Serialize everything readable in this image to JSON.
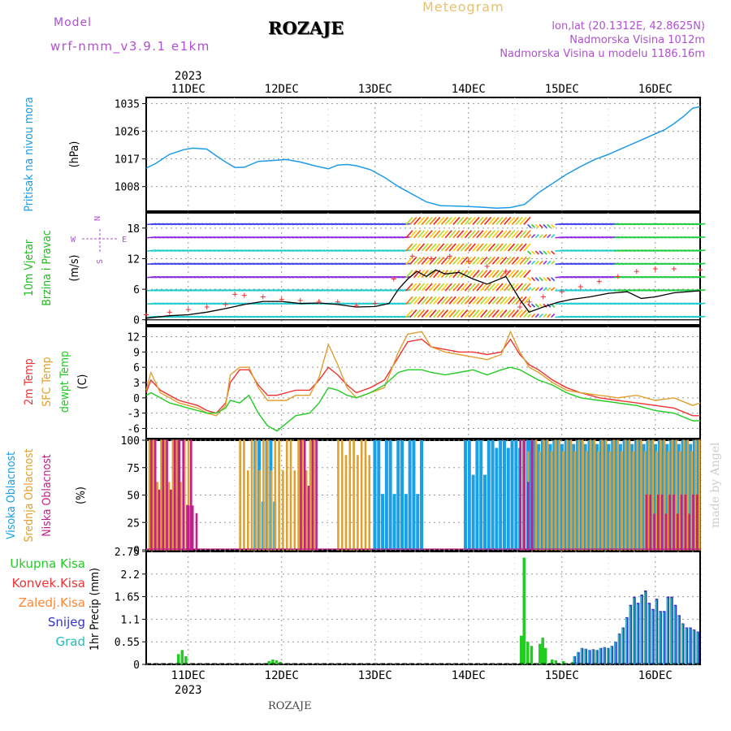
{
  "header": {
    "model_label": "Model",
    "model_name": "wrf-nmm_v3.9.1 e1km",
    "station": "ROZAJE",
    "meteogram": "Meteogram",
    "lonlat": "lon,lat (20.1312E, 42.8625N)",
    "alt": "Nadmorska Visina 1012m",
    "alt_model": "Nadmorska Visina u modelu 1186.16m",
    "year": "2023",
    "footer_station": "ROZAJE",
    "watermark": "made by Angel"
  },
  "colors": {
    "pressure": "#1e9be6",
    "wind_label": "#22bb22",
    "temp2m": "#ee3333",
    "sfc": "#e0a030",
    "dewpt": "#22cc22",
    "high_cloud": "#1aa0e6",
    "mid_cloud": "#e0a030",
    "low_cloud": "#c0208a",
    "meteogram": "#e8c070",
    "purple": "#b050d0",
    "total_precip": "#22cc22",
    "conv_precip": "#ee3333",
    "frozen_precip": "#ff8833",
    "snow": "#3333cc",
    "graupel": "#22bbbb"
  },
  "chart_data": [
    {
      "type": "line",
      "title": "",
      "ylabel_lines": [
        "Pritisak na nivou mora",
        "(hPa)"
      ],
      "ylim": [
        1000,
        1037
      ],
      "yticks": [
        1008,
        1017,
        1026,
        1035
      ],
      "x_ticks": [
        "11DEC",
        "12DEC",
        "13DEC",
        "14DEC",
        "15DEC",
        "16DEC"
      ],
      "x_range_days": [
        10.55,
        16.48
      ],
      "grid": true,
      "series": [
        {
          "x": [
            10.55,
            10.65,
            10.8,
            10.95,
            11.05,
            11.2,
            11.3,
            11.4,
            11.5,
            11.6,
            11.75,
            11.9,
            12.05,
            12.2,
            12.35,
            12.5,
            12.6,
            12.7,
            12.8,
            12.95,
            13.1,
            13.25,
            13.4,
            13.55,
            13.7,
            13.85,
            14.0,
            14.15,
            14.3,
            14.45,
            14.6,
            14.75,
            14.9,
            15.05,
            15.2,
            15.35,
            15.5,
            15.65,
            15.8,
            15.95,
            16.1,
            16.2,
            16.3,
            16.4,
            16.48
          ],
          "y": [
            1014,
            1015.5,
            1018.5,
            1020,
            1020.5,
            1020.2,
            1018,
            1016,
            1014.2,
            1014.3,
            1016.2,
            1016.5,
            1016.8,
            1016,
            1014.8,
            1013.8,
            1015,
            1015.2,
            1014.8,
            1013.5,
            1011,
            1008,
            1005.5,
            1003,
            1001.8,
            1001.7,
            1001.5,
            1001.3,
            1001,
            1001.2,
            1002.2,
            1006,
            1009,
            1012,
            1014.5,
            1016.8,
            1018.5,
            1020.5,
            1022.5,
            1024.5,
            1026.5,
            1028.5,
            1030.8,
            1033.5,
            1034
          ]
        }
      ]
    },
    {
      "type": "line",
      "title": "",
      "ylabel_lines": [
        "10m Vjetar",
        "Brzina i Pravac",
        "(m/s)"
      ],
      "ylim": [
        -1,
        21
      ],
      "yticks": [
        0,
        6,
        12,
        18
      ],
      "x_ticks": [
        "11DEC",
        "12DEC",
        "13DEC",
        "14DEC",
        "15DEC",
        "16DEC"
      ],
      "x_range_days": [
        10.55,
        16.48
      ],
      "grid": true,
      "compass_label": "N",
      "compass_e": "E",
      "compass_w": "W",
      "compass_s": "S",
      "series": [
        {
          "name": "",
          "x": [
            10.55,
            10.8,
            11.0,
            11.2,
            11.4,
            11.6,
            11.8,
            12.0,
            12.2,
            12.4,
            12.6,
            12.8,
            13.0,
            13.15,
            13.25,
            13.35,
            13.45,
            13.55,
            13.65,
            13.75,
            13.9,
            14.05,
            14.2,
            14.4,
            14.55,
            14.65,
            14.8,
            14.95,
            15.1,
            15.3,
            15.5,
            15.7,
            15.85,
            16.0,
            16.2,
            16.48
          ],
          "y": [
            0.3,
            0.8,
            1.0,
            1.5,
            2.2,
            3.0,
            3.6,
            3.6,
            3.2,
            3.3,
            3.0,
            2.5,
            2.6,
            3.2,
            6.0,
            8.0,
            9.5,
            8.5,
            9.8,
            9.0,
            9.3,
            8.0,
            7.0,
            8.5,
            4.0,
            1.5,
            2.5,
            3.4,
            4.0,
            4.5,
            5.2,
            5.5,
            4.2,
            4.5,
            5.3,
            5.7
          ]
        },
        {
          "name": "",
          "x": [
            10.55,
            10.8,
            11.0,
            11.2,
            11.4,
            11.5,
            11.6,
            11.8,
            12.0,
            12.2,
            12.4,
            12.6,
            12.8,
            13.0,
            13.2,
            13.4,
            13.6,
            13.8,
            14.0,
            14.2,
            14.4,
            14.55,
            14.65,
            14.8,
            15.0,
            15.2,
            15.4,
            15.6,
            15.8,
            16.0,
            16.2,
            16.48
          ],
          "y": [
            1.0,
            1.5,
            2.0,
            2.5,
            3.0,
            5.0,
            4.8,
            4.5,
            4.0,
            3.8,
            3.6,
            3.5,
            2.8,
            3.2,
            8.0,
            12.5,
            12.0,
            12.5,
            11.5,
            10.5,
            9.5,
            2.5,
            3.5,
            4.5,
            5.5,
            6.5,
            7.5,
            8.5,
            9.5,
            10.0,
            10.0,
            9.8
          ]
        }
      ]
    },
    {
      "type": "line",
      "title": "",
      "ylabel_lines": [
        "2m Temp",
        "SFC Temp",
        "dewpt Temp",
        "(C)"
      ],
      "ylim": [
        -8,
        14
      ],
      "yticks": [
        -6,
        -3,
        0,
        3,
        6,
        9,
        12
      ],
      "x_ticks": [
        "11DEC",
        "12DEC",
        "13DEC",
        "14DEC",
        "15DEC",
        "16DEC"
      ],
      "x_range_days": [
        10.55,
        16.48
      ],
      "grid": true,
      "series": [
        {
          "name": "2m Temp",
          "x": [
            10.55,
            10.6,
            10.7,
            10.8,
            10.9,
            11.0,
            11.1,
            11.2,
            11.3,
            11.4,
            11.45,
            11.55,
            11.65,
            11.75,
            11.85,
            11.95,
            12.05,
            12.15,
            12.3,
            12.4,
            12.5,
            12.6,
            12.7,
            12.8,
            12.95,
            13.1,
            13.25,
            13.35,
            13.5,
            13.6,
            13.75,
            13.9,
            14.05,
            14.2,
            14.35,
            14.45,
            14.55,
            14.65,
            14.75,
            14.9,
            15.05,
            15.2,
            15.4,
            15.6,
            15.8,
            16.0,
            16.2,
            16.4,
            16.48
          ],
          "y": [
            1.0,
            3.5,
            1.5,
            0.5,
            -0.5,
            -1.0,
            -1.5,
            -2.5,
            -3.0,
            -1.0,
            3.0,
            5.5,
            5.5,
            2.5,
            0.5,
            0.5,
            1.0,
            1.5,
            1.5,
            3.5,
            6.0,
            4.5,
            2.5,
            1.0,
            2.0,
            3.5,
            8.0,
            11.0,
            11.5,
            10.0,
            9.5,
            9.0,
            9.0,
            8.5,
            9.0,
            11.5,
            8.5,
            6.5,
            5.5,
            3.5,
            2.0,
            1.0,
            0.0,
            -0.5,
            -1.0,
            -1.5,
            -2.0,
            -3.5,
            -3.5
          ]
        },
        {
          "name": "SFC Temp",
          "x": [
            10.55,
            10.6,
            10.7,
            10.8,
            10.9,
            11.0,
            11.1,
            11.2,
            11.3,
            11.4,
            11.45,
            11.55,
            11.65,
            11.75,
            11.85,
            11.95,
            12.05,
            12.15,
            12.3,
            12.4,
            12.5,
            12.6,
            12.7,
            12.8,
            12.95,
            13.1,
            13.25,
            13.35,
            13.5,
            13.6,
            13.75,
            13.9,
            14.05,
            14.2,
            14.35,
            14.45,
            14.55,
            14.65,
            14.75,
            14.9,
            15.05,
            15.2,
            15.4,
            15.6,
            15.8,
            16.0,
            16.2,
            16.4,
            16.48
          ],
          "y": [
            1.5,
            5.0,
            1.0,
            0.0,
            -1.0,
            -1.5,
            -2.0,
            -3.0,
            -3.5,
            -1.5,
            4.5,
            6.0,
            6.0,
            2.0,
            -0.5,
            -0.5,
            -0.5,
            0.5,
            0.5,
            4.0,
            10.5,
            6.5,
            2.0,
            0.0,
            1.0,
            2.0,
            9.0,
            12.5,
            13.0,
            10.0,
            9.0,
            8.5,
            8.0,
            7.5,
            8.5,
            13.0,
            9.0,
            6.0,
            5.0,
            3.0,
            1.5,
            1.0,
            0.5,
            0.0,
            0.5,
            -0.5,
            0.0,
            -1.5,
            -1.0
          ]
        },
        {
          "name": "dewpt Temp",
          "x": [
            10.55,
            10.6,
            10.7,
            10.8,
            10.9,
            11.0,
            11.1,
            11.2,
            11.3,
            11.4,
            11.45,
            11.55,
            11.65,
            11.75,
            11.85,
            11.95,
            12.05,
            12.15,
            12.3,
            12.4,
            12.5,
            12.6,
            12.7,
            12.8,
            12.95,
            13.1,
            13.25,
            13.35,
            13.5,
            13.6,
            13.75,
            13.9,
            14.05,
            14.2,
            14.35,
            14.45,
            14.55,
            14.65,
            14.75,
            14.9,
            15.05,
            15.2,
            15.4,
            15.6,
            15.8,
            16.0,
            16.2,
            16.4,
            16.48
          ],
          "y": [
            0.5,
            1.0,
            0.0,
            -1.0,
            -1.5,
            -2.0,
            -2.5,
            -3.0,
            -3.0,
            -2.0,
            -0.5,
            -1.0,
            0.5,
            -3.0,
            -5.5,
            -6.5,
            -5.0,
            -3.5,
            -3.0,
            -1.0,
            2.0,
            1.5,
            0.5,
            0.0,
            1.0,
            2.5,
            5.0,
            5.5,
            5.5,
            5.0,
            4.5,
            5.0,
            5.5,
            4.5,
            5.5,
            6.0,
            5.5,
            4.5,
            3.5,
            2.5,
            1.0,
            0.0,
            -0.5,
            -1.0,
            -1.5,
            -2.5,
            -3.0,
            -4.5,
            -4.5
          ]
        }
      ]
    },
    {
      "type": "bar",
      "title": "",
      "ylabel_lines": [
        "Visoka Oblacnost",
        "Srednja Oblacnost",
        "Niska Oblacnost",
        "(%)"
      ],
      "ylim": [
        0,
        100
      ],
      "yticks": [
        0,
        25,
        50,
        75,
        100
      ],
      "x_ticks": [
        "11DEC",
        "12DEC",
        "13DEC",
        "14DEC",
        "15DEC",
        "16DEC"
      ],
      "x_range_days": [
        10.55,
        16.48
      ],
      "grid": true,
      "series": [
        {
          "name": "Visoka Oblacnost",
          "segments": [
            [
              11.7,
              11.95,
              100,
              20
            ],
            [
              12.98,
              13.5,
              100,
              30
            ],
            [
              13.95,
              14.2,
              100,
              55
            ],
            [
              14.2,
              14.65,
              100,
              90
            ],
            [
              14.65,
              16.48,
              100,
              95
            ]
          ]
        },
        {
          "name": "Srednja Oblacnost",
          "segments": [
            [
              10.58,
              11.0,
              100,
              45
            ],
            [
              11.55,
              12.35,
              100,
              60
            ],
            [
              12.6,
              12.95,
              100,
              80
            ],
            [
              14.55,
              16.48,
              100,
              85
            ]
          ]
        },
        {
          "name": "Niska Oblacnost",
          "segments": [
            [
              10.6,
              10.9,
              100,
              35
            ],
            [
              10.9,
              11.05,
              100,
              15
            ],
            [
              11.0,
              11.1,
              40,
              30
            ],
            [
              12.2,
              12.4,
              100,
              40
            ],
            [
              14.55,
              14.7,
              100,
              45
            ],
            [
              15.9,
              16.48,
              50,
              25
            ]
          ]
        }
      ]
    },
    {
      "type": "bar",
      "title": "",
      "ylabel_lines": [
        "1hr Precip (mm)"
      ],
      "ylim": [
        0,
        2.75
      ],
      "yticks": [
        0,
        0.55,
        1.1,
        1.65,
        2.2,
        2.75
      ],
      "x_ticks": [
        "11DEC",
        "12DEC",
        "13DEC",
        "14DEC",
        "15DEC",
        "16DEC"
      ],
      "x_range_days": [
        10.55,
        16.48
      ],
      "grid": true,
      "legend": [
        "Ukupna Kisa",
        "Konvek.Kisa",
        "Zaledj.Kisa",
        "Snijeg",
        "Grad"
      ],
      "series": [
        {
          "name": "Ukupna Kisa",
          "x": [
            10.88,
            10.92,
            10.96,
            11.85,
            11.89,
            11.93,
            11.97,
            14.55,
            14.58,
            14.62,
            14.66,
            14.75,
            14.78,
            14.81,
            14.88,
            14.92,
            15.0,
            15.1,
            15.15
          ],
          "y": [
            0.25,
            0.35,
            0.2,
            0.08,
            0.12,
            0.1,
            0.06,
            0.7,
            2.6,
            0.55,
            0.45,
            0.5,
            0.65,
            0.4,
            0.12,
            0.1,
            0.08,
            0.06,
            0.05
          ]
        },
        {
          "name": "Snijeg",
          "x": [
            15.12,
            15.16,
            15.2,
            15.24,
            15.28,
            15.32,
            15.36,
            15.4,
            15.44,
            15.48,
            15.52,
            15.56,
            15.6,
            15.64,
            15.68,
            15.72,
            15.76,
            15.8,
            15.84,
            15.88,
            15.92,
            15.96,
            16.0,
            16.04,
            16.08,
            16.12,
            16.16,
            16.2,
            16.24,
            16.28,
            16.32,
            16.36,
            16.4,
            16.44
          ],
          "y": [
            0.2,
            0.3,
            0.4,
            0.38,
            0.35,
            0.37,
            0.35,
            0.4,
            0.42,
            0.4,
            0.45,
            0.55,
            0.75,
            0.9,
            1.15,
            1.45,
            1.65,
            1.5,
            1.7,
            1.8,
            1.5,
            1.35,
            1.6,
            1.3,
            1.3,
            1.65,
            1.65,
            1.45,
            1.2,
            1.0,
            0.9,
            0.9,
            0.85,
            0.8
          ]
        }
      ]
    }
  ]
}
